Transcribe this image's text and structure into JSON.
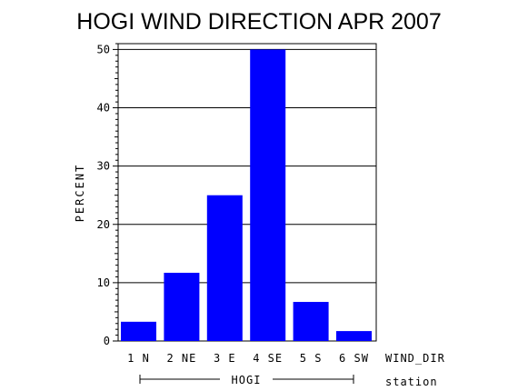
{
  "chart_data": {
    "type": "bar",
    "title": "HOGI WIND DIRECTION APR 2007",
    "ylabel": "PERCENT",
    "xlabel": "WIND_DIR",
    "group_axis_label": "station",
    "group_label": "HOGI",
    "categories": [
      "1 N",
      "2 NE",
      "3 E",
      "4 SE",
      "5 S",
      "6 SW"
    ],
    "values": [
      3.3,
      11.7,
      25.0,
      50.0,
      6.7,
      1.7
    ],
    "ylim": [
      0,
      51
    ],
    "yticks": [
      0,
      10,
      20,
      30,
      40,
      50
    ],
    "grid": true,
    "bar_color": "#0000ff"
  }
}
